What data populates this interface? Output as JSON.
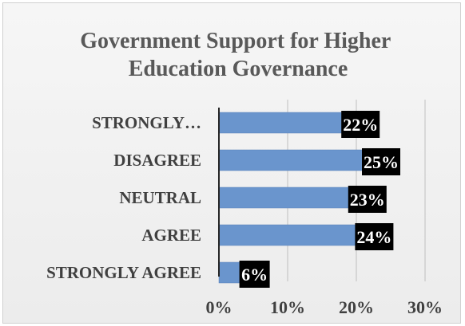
{
  "chart_data": {
    "type": "bar",
    "orientation": "horizontal",
    "title": "Government Support for Higher Education Governance",
    "title_lines": [
      "Government Support for Higher",
      "Education Governance"
    ],
    "categories": [
      "STRONGLY…",
      "DISAGREE",
      "NEUTRAL",
      "AGREE",
      "STRONGLY AGREE"
    ],
    "values": [
      22,
      25,
      23,
      24,
      6
    ],
    "data_labels": [
      "22%",
      "25%",
      "23%",
      "24%",
      "6%"
    ],
    "xlim": [
      0,
      30
    ],
    "xticks": [
      0,
      10,
      20,
      30
    ],
    "xtick_labels": [
      "0%",
      "10%",
      "20%",
      "30%"
    ],
    "grid": "vertical",
    "legend": "none",
    "colors": {
      "bar": "#6a95cd",
      "bar_edge": "#5a82b8",
      "data_label_bg": "#000000",
      "data_label_text": "#ffffff",
      "title": "#595959",
      "axis_text": "#404040",
      "gridline": "#bfbfbf",
      "axis_line": "#262626"
    }
  }
}
